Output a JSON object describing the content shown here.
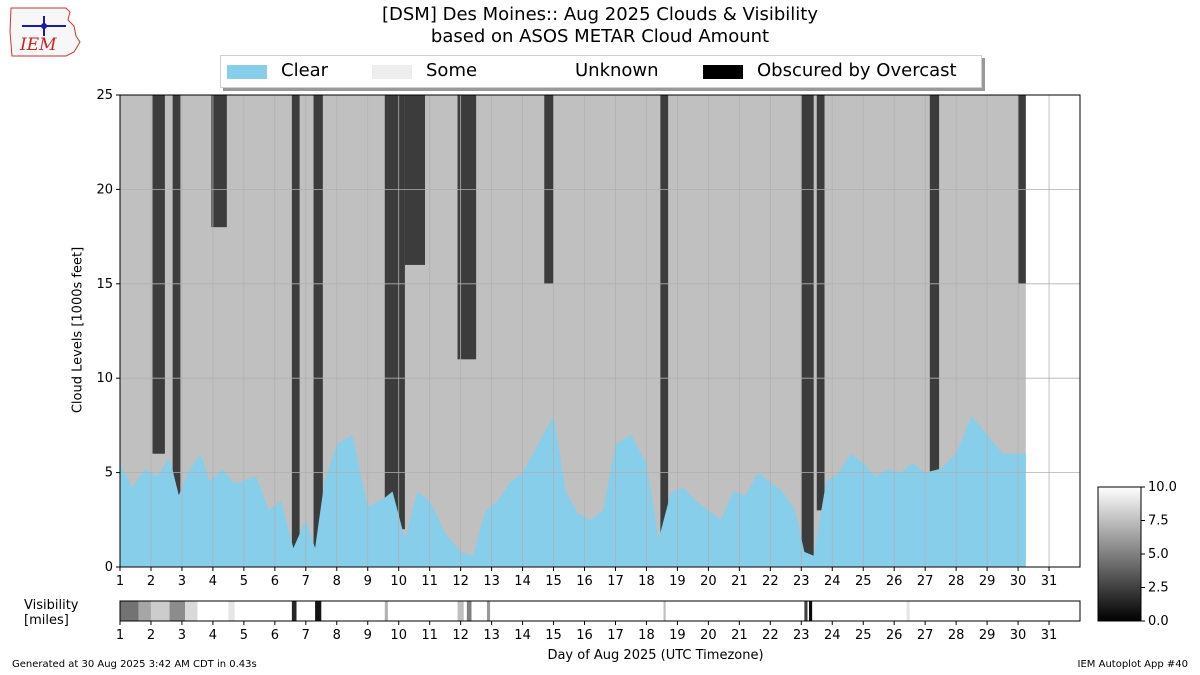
{
  "logo": {
    "text": "IEM",
    "color": "#cc2222"
  },
  "chart_data": {
    "type": "area",
    "title": "[DSM] Des Moines:: Aug 2025 Clouds & Visibility",
    "subtitle": "based on ASOS METAR Cloud Amount",
    "xlabel": "Day of Aug 2025 (UTC Timezone)",
    "ylabel": "Cloud Levels [1000s feet]",
    "xlim": [
      1,
      32
    ],
    "ylim": [
      0,
      25
    ],
    "x_ticks": [
      1,
      2,
      3,
      4,
      5,
      6,
      7,
      8,
      9,
      10,
      11,
      12,
      13,
      14,
      15,
      16,
      17,
      18,
      19,
      20,
      21,
      22,
      23,
      24,
      25,
      26,
      27,
      28,
      29,
      30,
      31
    ],
    "y_ticks": [
      0,
      5,
      10,
      15,
      20,
      25
    ],
    "grid": true,
    "legend_position": "top-center",
    "legend": [
      {
        "label": "Clear",
        "color": "#87ceeb"
      },
      {
        "label": "Some",
        "color": "#eeeeee"
      },
      {
        "label": "Unknown",
        "color": "#ffffff"
      },
      {
        "label": "Obscured by Overcast",
        "color": "#000000"
      }
    ],
    "data_end_day": 30.25,
    "clear_ceiling_kft": [
      [
        1.0,
        5.5
      ],
      [
        1.4,
        4.2
      ],
      [
        1.8,
        5.2
      ],
      [
        2.2,
        4.8
      ],
      [
        2.6,
        5.8
      ],
      [
        2.9,
        3.8
      ],
      [
        3.2,
        5.0
      ],
      [
        3.6,
        6.0
      ],
      [
        3.9,
        4.5
      ],
      [
        4.3,
        5.2
      ],
      [
        4.7,
        4.4
      ],
      [
        5.0,
        4.6
      ],
      [
        5.4,
        4.8
      ],
      [
        5.8,
        3.0
      ],
      [
        6.2,
        3.5
      ],
      [
        6.6,
        1.0
      ],
      [
        7.0,
        2.5
      ],
      [
        7.3,
        1.0
      ],
      [
        7.6,
        4.5
      ],
      [
        8.0,
        6.5
      ],
      [
        8.5,
        7.0
      ],
      [
        9.0,
        3.2
      ],
      [
        9.5,
        3.6
      ],
      [
        9.8,
        4.0
      ],
      [
        10.2,
        1.5
      ],
      [
        10.6,
        4.0
      ],
      [
        11.0,
        3.5
      ],
      [
        11.5,
        1.8
      ],
      [
        12.0,
        0.8
      ],
      [
        12.4,
        0.6
      ],
      [
        12.8,
        3.0
      ],
      [
        13.2,
        3.5
      ],
      [
        13.6,
        4.5
      ],
      [
        14.0,
        5.0
      ],
      [
        14.5,
        6.5
      ],
      [
        15.0,
        8.0
      ],
      [
        15.4,
        4.0
      ],
      [
        15.8,
        2.8
      ],
      [
        16.2,
        2.5
      ],
      [
        16.6,
        3.0
      ],
      [
        17.0,
        6.5
      ],
      [
        17.5,
        7.0
      ],
      [
        18.0,
        5.5
      ],
      [
        18.4,
        1.5
      ],
      [
        18.8,
        4.0
      ],
      [
        19.2,
        4.2
      ],
      [
        19.6,
        3.5
      ],
      [
        20.0,
        3.0
      ],
      [
        20.4,
        2.5
      ],
      [
        20.8,
        4.0
      ],
      [
        21.2,
        3.8
      ],
      [
        21.6,
        5.0
      ],
      [
        22.0,
        4.5
      ],
      [
        22.4,
        4.0
      ],
      [
        22.8,
        3.0
      ],
      [
        23.1,
        0.8
      ],
      [
        23.4,
        0.6
      ],
      [
        23.8,
        4.5
      ],
      [
        24.2,
        5.0
      ],
      [
        24.6,
        6.0
      ],
      [
        25.0,
        5.5
      ],
      [
        25.4,
        4.8
      ],
      [
        25.8,
        5.2
      ],
      [
        26.2,
        5.0
      ],
      [
        26.6,
        5.5
      ],
      [
        27.0,
        5.0
      ],
      [
        27.5,
        5.2
      ],
      [
        28.0,
        6.0
      ],
      [
        28.5,
        8.0
      ],
      [
        29.0,
        7.0
      ],
      [
        29.5,
        6.0
      ],
      [
        30.0,
        6.0
      ],
      [
        30.25,
        6.0
      ]
    ],
    "dark_overcast_periods": [
      {
        "start": 2.05,
        "end": 2.45,
        "low_kft": 6.0,
        "high_kft": 25
      },
      {
        "start": 2.7,
        "end": 2.95,
        "low_kft": 3.8,
        "high_kft": 25
      },
      {
        "start": 3.95,
        "end": 4.45,
        "low_kft": 18.0,
        "high_kft": 25
      },
      {
        "start": 6.55,
        "end": 6.8,
        "low_kft": 0.8,
        "high_kft": 25
      },
      {
        "start": 7.25,
        "end": 7.55,
        "low_kft": 0.8,
        "high_kft": 25
      },
      {
        "start": 9.55,
        "end": 10.2,
        "low_kft": 2.0,
        "high_kft": 25
      },
      {
        "start": 10.2,
        "end": 10.85,
        "low_kft": 16.0,
        "high_kft": 25
      },
      {
        "start": 11.9,
        "end": 12.5,
        "low_kft": 11.0,
        "high_kft": 25
      },
      {
        "start": 14.7,
        "end": 15.0,
        "low_kft": 15.0,
        "high_kft": 25
      },
      {
        "start": 18.45,
        "end": 18.7,
        "low_kft": 1.5,
        "high_kft": 25
      },
      {
        "start": 23.0,
        "end": 23.4,
        "low_kft": 0.6,
        "high_kft": 25
      },
      {
        "start": 23.5,
        "end": 23.75,
        "low_kft": 3.0,
        "high_kft": 25
      },
      {
        "start": 27.15,
        "end": 27.45,
        "low_kft": 5.0,
        "high_kft": 25
      },
      {
        "start": 30.0,
        "end": 30.25,
        "low_kft": 15.0,
        "high_kft": 25
      }
    ],
    "visibility": {
      "label_line1": "Visibility",
      "label_line2": "[miles]",
      "colorbar_ticks": [
        "10.0",
        "7.5",
        "5.0",
        "2.5",
        "0.0"
      ],
      "colorbar_range": [
        0,
        10
      ],
      "reduced_periods": [
        {
          "start": 1.0,
          "end": 1.6,
          "miles": 4.5
        },
        {
          "start": 1.6,
          "end": 2.0,
          "miles": 6.5
        },
        {
          "start": 2.0,
          "end": 2.6,
          "miles": 8.0
        },
        {
          "start": 2.6,
          "end": 3.1,
          "miles": 5.5
        },
        {
          "start": 3.1,
          "end": 3.5,
          "miles": 8.5
        },
        {
          "start": 4.5,
          "end": 4.7,
          "miles": 9.0
        },
        {
          "start": 6.55,
          "end": 6.7,
          "miles": 1.5
        },
        {
          "start": 7.3,
          "end": 7.5,
          "miles": 0.8
        },
        {
          "start": 9.55,
          "end": 9.65,
          "miles": 7.0
        },
        {
          "start": 11.9,
          "end": 12.1,
          "miles": 7.5
        },
        {
          "start": 12.2,
          "end": 12.35,
          "miles": 5.0
        },
        {
          "start": 12.85,
          "end": 12.95,
          "miles": 6.0
        },
        {
          "start": 18.55,
          "end": 18.62,
          "miles": 7.5
        },
        {
          "start": 23.1,
          "end": 23.2,
          "miles": 2.5
        },
        {
          "start": 23.25,
          "end": 23.35,
          "miles": 0.3
        },
        {
          "start": 26.4,
          "end": 26.5,
          "miles": 9.0
        }
      ]
    }
  },
  "footer": {
    "generated": "Generated at 30 Aug 2025 3:42 AM CDT in 0.43s",
    "app": "IEM Autoplot App #40"
  }
}
